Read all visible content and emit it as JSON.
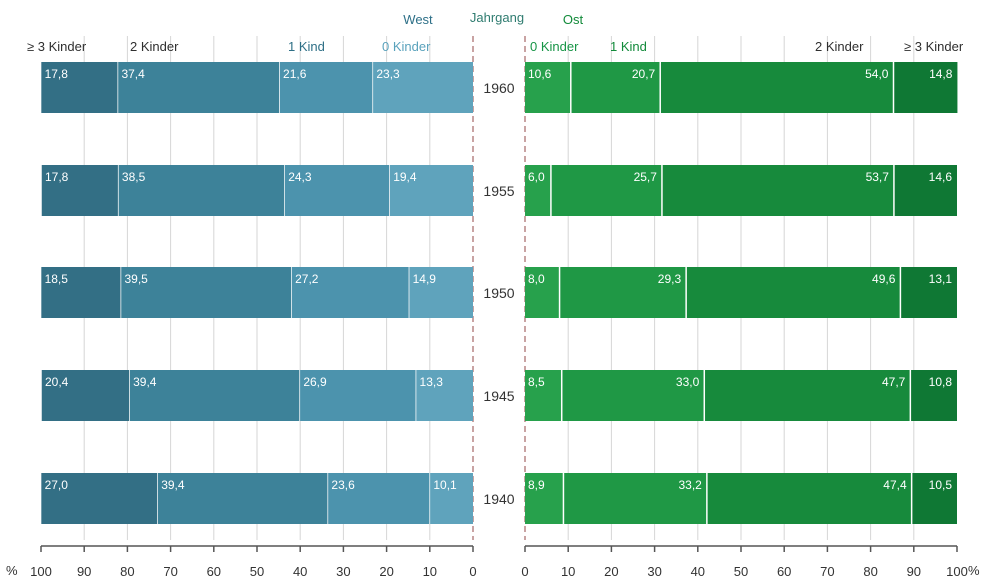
{
  "chart_data": {
    "type": "bar",
    "title_west": "West",
    "title_center": "Jahrgang",
    "title_east": "Ost",
    "west_headers": [
      "≥ 3 Kinder",
      "2 Kinder",
      "1 Kind",
      "0 Kinder"
    ],
    "east_headers": [
      "0 Kinder",
      "1 Kind",
      "2 Kinder",
      "≥ 3 Kinder"
    ],
    "categories": [
      "1960",
      "1955",
      "1950",
      "1945",
      "1940"
    ],
    "west_series": [
      {
        "name": "0 Kinder",
        "values": [
          23.3,
          19.4,
          14.9,
          13.3,
          10.1
        ],
        "color": "#5fa3bc"
      },
      {
        "name": "1 Kind",
        "values": [
          21.6,
          24.3,
          27.2,
          26.9,
          23.6
        ],
        "color": "#4c93ad"
      },
      {
        "name": "2 Kinder",
        "values": [
          37.4,
          38.5,
          39.5,
          39.4,
          39.4
        ],
        "color": "#3d8299"
      },
      {
        "name": "≥ 3 Kinder",
        "values": [
          17.8,
          17.8,
          18.5,
          20.4,
          27.0
        ],
        "color": "#336f85"
      }
    ],
    "east_series": [
      {
        "name": "0 Kinder",
        "values": [
          10.6,
          6.0,
          8.0,
          8.5,
          8.9
        ],
        "color": "#27a14c"
      },
      {
        "name": "1 Kind",
        "values": [
          20.7,
          25.7,
          29.3,
          33.0,
          33.2
        ],
        "color": "#1f9845"
      },
      {
        "name": "2 Kinder",
        "values": [
          54.0,
          53.7,
          49.6,
          47.7,
          47.4
        ],
        "color": "#178a3c"
      },
      {
        "name": "≥ 3 Kinder",
        "values": [
          14.8,
          14.6,
          13.1,
          10.8,
          10.5
        ],
        "color": "#0f7834"
      }
    ],
    "west_ticks": [
      "100",
      "90",
      "80",
      "70",
      "60",
      "50",
      "40",
      "30",
      "20",
      "10",
      "0"
    ],
    "east_ticks": [
      "0",
      "10",
      "20",
      "30",
      "40",
      "50",
      "60",
      "70",
      "80",
      "90",
      "100"
    ],
    "unit_label": "%",
    "xlim": [
      0,
      100
    ]
  }
}
